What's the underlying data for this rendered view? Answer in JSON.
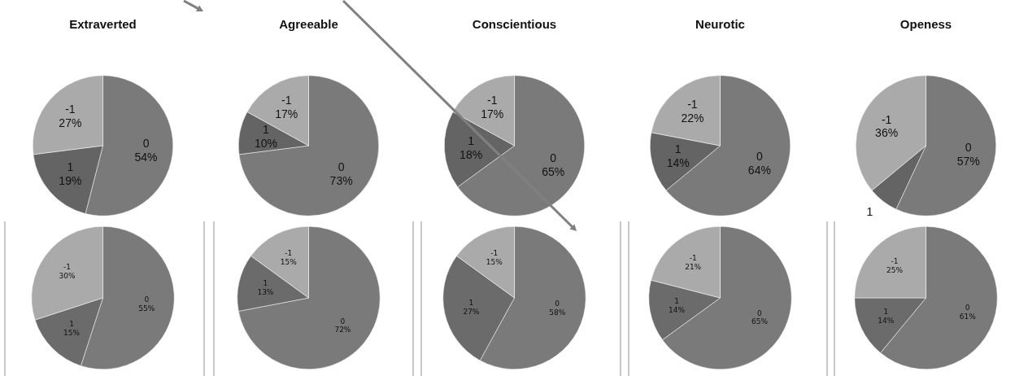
{
  "chart_data": [
    {
      "type": "pie",
      "title": "Extraverted",
      "categories": [
        "0",
        "1",
        "-1"
      ],
      "values": [
        54,
        19,
        27
      ],
      "colors": [
        "#7a7a7a",
        "#646464",
        "#aaaaaa"
      ],
      "value_labels": [
        "54%",
        "19%",
        "27%"
      ]
    },
    {
      "type": "pie",
      "title": "Agreeable",
      "categories": [
        "0",
        "1",
        "-1"
      ],
      "values": [
        73,
        10,
        17
      ],
      "colors": [
        "#7a7a7a",
        "#646464",
        "#aaaaaa"
      ],
      "value_labels": [
        "73%",
        "10%",
        "17%"
      ]
    },
    {
      "type": "pie",
      "title": "Conscientious",
      "categories": [
        "0",
        "1",
        "-1"
      ],
      "values": [
        65,
        18,
        17
      ],
      "colors": [
        "#7a7a7a",
        "#646464",
        "#aaaaaa"
      ],
      "value_labels": [
        "65%",
        "18%",
        "17%"
      ]
    },
    {
      "type": "pie",
      "title": "Neurotic",
      "categories": [
        "0",
        "1",
        "-1"
      ],
      "values": [
        64,
        14,
        22
      ],
      "colors": [
        "#7a7a7a",
        "#646464",
        "#aaaaaa"
      ],
      "value_labels": [
        "64%",
        "14%",
        "22%"
      ]
    },
    {
      "type": "pie",
      "title": "Openess",
      "categories": [
        "0",
        "1",
        "-1"
      ],
      "values": [
        57,
        7,
        36
      ],
      "colors": [
        "#7a7a7a",
        "#646464",
        "#aaaaaa"
      ],
      "value_labels": [
        "57%",
        null,
        "36%"
      ]
    },
    {
      "type": "pie",
      "categories": [
        "0",
        "1",
        "-1"
      ],
      "values": [
        55,
        15,
        30
      ],
      "colors": [
        "#7a7a7a",
        "#6b6b6b",
        "#aaaaaa"
      ],
      "value_labels": [
        "55%",
        "15%",
        "30%"
      ]
    },
    {
      "type": "pie",
      "categories": [
        "0",
        "1",
        "-1"
      ],
      "values": [
        72,
        13,
        15
      ],
      "colors": [
        "#7a7a7a",
        "#6b6b6b",
        "#aaaaaa"
      ],
      "value_labels": [
        "72%",
        "13%",
        "15%"
      ]
    },
    {
      "type": "pie",
      "categories": [
        "0",
        "1",
        "-1"
      ],
      "values": [
        58,
        27,
        15
      ],
      "colors": [
        "#7a7a7a",
        "#6b6b6b",
        "#aaaaaa"
      ],
      "value_labels": [
        "58%",
        "27%",
        "15%"
      ]
    },
    {
      "type": "pie",
      "categories": [
        "0",
        "1",
        "-1"
      ],
      "values": [
        65,
        14,
        21
      ],
      "colors": [
        "#7a7a7a",
        "#6b6b6b",
        "#aaaaaa"
      ],
      "value_labels": [
        "65%",
        "14%",
        "21%"
      ]
    },
    {
      "type": "pie",
      "categories": [
        "0",
        "1",
        "-1"
      ],
      "values": [
        61,
        14,
        25
      ],
      "colors": [
        "#7a7a7a",
        "#6b6b6b",
        "#aaaaaa"
      ],
      "value_labels": [
        "61%",
        "14%",
        "25%"
      ]
    }
  ]
}
